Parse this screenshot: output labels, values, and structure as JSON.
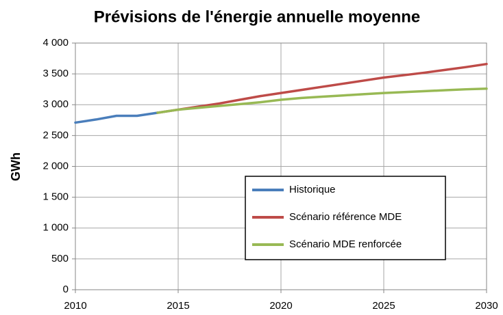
{
  "chart_data": {
    "type": "line",
    "title": "Prévisions de l'énergie annuelle moyenne",
    "y_label": "GWh",
    "x": [
      2010,
      2011,
      2012,
      2013,
      2014,
      2015,
      2016,
      2017,
      2018,
      2019,
      2020,
      2021,
      2022,
      2023,
      2024,
      2025,
      2026,
      2027,
      2028,
      2029,
      2030
    ],
    "series": [
      {
        "name": "Historique",
        "color": "#4a7ebb",
        "values": [
          2710,
          2760,
          2820,
          2820,
          2870,
          null,
          null,
          null,
          null,
          null,
          null,
          null,
          null,
          null,
          null,
          null,
          null,
          null,
          null,
          null,
          null
        ]
      },
      {
        "name": "Scénario référence MDE",
        "color": "#be4b48",
        "values": [
          null,
          null,
          null,
          null,
          2870,
          2920,
          2970,
          3020,
          3080,
          3140,
          3190,
          3240,
          3290,
          3340,
          3390,
          3440,
          3480,
          3520,
          3565,
          3610,
          3660
        ]
      },
      {
        "name": "Scénario MDE renforcée",
        "color": "#98b954",
        "values": [
          null,
          null,
          null,
          null,
          2870,
          2920,
          2950,
          2980,
          3010,
          3040,
          3080,
          3110,
          3130,
          3150,
          3170,
          3190,
          3205,
          3220,
          3235,
          3250,
          3260
        ]
      }
    ],
    "xlim": [
      2010,
      2030
    ],
    "xticks": [
      2010,
      2015,
      2020,
      2025,
      2030
    ],
    "ylim": [
      0,
      4000
    ],
    "yticks": [
      0,
      500,
      {
        "value": 1000,
        "label": "1 000"
      },
      {
        "value": 1500,
        "label": "1 500"
      },
      {
        "value": 2000,
        "label": "2 000"
      },
      {
        "value": 2500,
        "label": "2 500"
      },
      {
        "value": 3000,
        "label": "3 000"
      },
      {
        "value": 3500,
        "label": "3 500"
      },
      {
        "value": 4000,
        "label": "4 000"
      }
    ],
    "grid": true,
    "legend": "lower right"
  }
}
